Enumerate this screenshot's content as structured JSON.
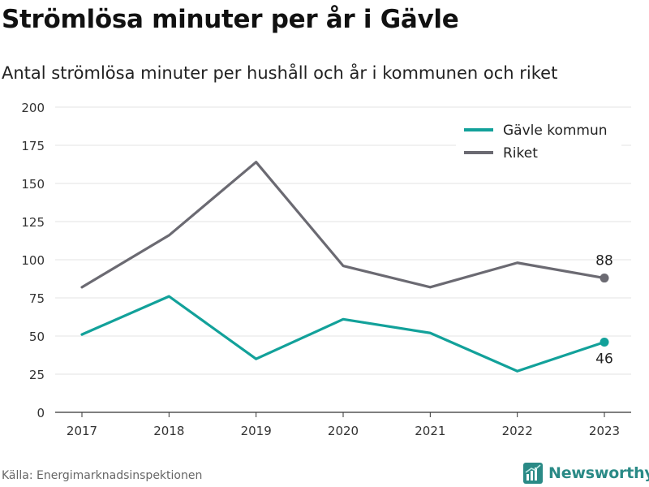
{
  "title": "Strömlösa minuter per år i Gävle",
  "subtitle": "Antal strömlösa minuter per hushåll och år i kommunen och riket",
  "source": "Källa: Energimarknadsinspektionen",
  "brand": {
    "name": "Newsworthy",
    "icon": "newsworthy-logo-icon",
    "color": "#2a8a86"
  },
  "chart_data": {
    "type": "line",
    "categories": [
      "2017",
      "2018",
      "2019",
      "2020",
      "2021",
      "2022",
      "2023"
    ],
    "series": [
      {
        "name": "Gävle kommun",
        "color": "#12a19a",
        "values": [
          51,
          76,
          35,
          61,
          52,
          27,
          46
        ],
        "end_label": "46"
      },
      {
        "name": "Riket",
        "color": "#6b6a72",
        "values": [
          82,
          116,
          164,
          96,
          82,
          98,
          88
        ],
        "end_label": "88"
      }
    ],
    "ylim": [
      0,
      200
    ],
    "yticks": [
      "0",
      "25",
      "50",
      "75",
      "100",
      "125",
      "150",
      "175",
      "200"
    ],
    "grid": true,
    "legend_position": "top-right"
  }
}
